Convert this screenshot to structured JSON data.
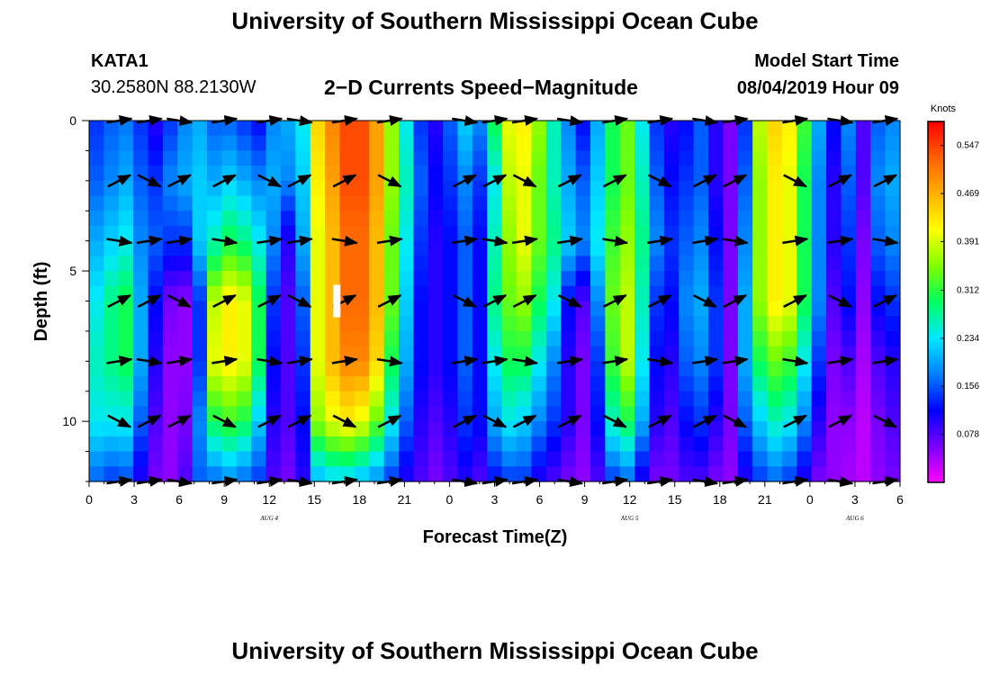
{
  "header": {
    "title": "University of Southern Mississippi Ocean Cube",
    "station": "KATA1",
    "coords": "30.2580N 88.2130W",
    "subtitle": "2−D Currents Speed−Magnitude",
    "model_start_label": "Model Start Time",
    "model_start_value": "08/04/2019 Hour 09"
  },
  "footer": {
    "title": "University of Southern Mississippi Ocean Cube"
  },
  "chart_data": {
    "type": "heatmap",
    "xlabel": "Forecast Time(Z)",
    "ylabel": "Depth (ft)",
    "xlim": [
      0,
      54
    ],
    "ylim": [
      12,
      0
    ],
    "x_tick_labels": [
      "0",
      "3",
      "6",
      "9",
      "12",
      "15",
      "18",
      "21",
      "0",
      "3",
      "6",
      "9",
      "12",
      "15",
      "18",
      "21",
      "0",
      "3",
      "6"
    ],
    "y_ticks": [
      0,
      5,
      10
    ],
    "day_labels": [
      {
        "label": "AUG 4",
        "x": 12
      },
      {
        "label": "AUG 5",
        "x": 36
      },
      {
        "label": "AUG 6",
        "x": 51
      }
    ],
    "colorbar": {
      "label": "Knots",
      "ticks": [
        0.078,
        0.156,
        0.234,
        0.312,
        0.391,
        0.469,
        0.547
      ],
      "range": [
        0,
        0.586
      ],
      "colors": [
        "#ff00ff",
        "#7a00ff",
        "#0000ff",
        "#0080ff",
        "#00e8ff",
        "#00ff60",
        "#80ff00",
        "#ffff00",
        "#ffb000",
        "#ff6000",
        "#ff0000"
      ]
    },
    "depths": [
      0,
      2,
      4,
      6,
      8,
      10,
      12
    ],
    "hours_step": 1,
    "column_speeds": [
      [
        0.14,
        0.16,
        0.2,
        0.24,
        0.26,
        0.24,
        0.16
      ],
      [
        0.16,
        0.18,
        0.22,
        0.28,
        0.28,
        0.24,
        0.14
      ],
      [
        0.17,
        0.2,
        0.24,
        0.3,
        0.3,
        0.24,
        0.15
      ],
      [
        0.14,
        0.16,
        0.18,
        0.2,
        0.2,
        0.16,
        0.1
      ],
      [
        0.1,
        0.14,
        0.16,
        0.12,
        0.1,
        0.08,
        0.06
      ],
      [
        0.14,
        0.18,
        0.14,
        0.06,
        0.05,
        0.05,
        0.05
      ],
      [
        0.18,
        0.2,
        0.14,
        0.05,
        0.05,
        0.06,
        0.08
      ],
      [
        0.2,
        0.22,
        0.22,
        0.14,
        0.14,
        0.18,
        0.16
      ],
      [
        0.16,
        0.2,
        0.26,
        0.38,
        0.4,
        0.3,
        0.16
      ],
      [
        0.16,
        0.22,
        0.3,
        0.42,
        0.42,
        0.32,
        0.18
      ],
      [
        0.14,
        0.2,
        0.28,
        0.4,
        0.4,
        0.3,
        0.16
      ],
      [
        0.12,
        0.18,
        0.24,
        0.3,
        0.3,
        0.22,
        0.14
      ],
      [
        0.18,
        0.2,
        0.18,
        0.14,
        0.12,
        0.1,
        0.08
      ],
      [
        0.2,
        0.18,
        0.1,
        0.08,
        0.08,
        0.08,
        0.06
      ],
      [
        0.24,
        0.22,
        0.2,
        0.16,
        0.14,
        0.12,
        0.1
      ],
      [
        0.44,
        0.42,
        0.4,
        0.4,
        0.4,
        0.36,
        0.2
      ],
      [
        0.5,
        0.48,
        0.46,
        0.46,
        0.46,
        0.4,
        0.22
      ],
      [
        0.54,
        0.54,
        0.52,
        0.52,
        0.5,
        0.42,
        0.22
      ],
      [
        0.54,
        0.54,
        0.52,
        0.52,
        0.5,
        0.4,
        0.2
      ],
      [
        0.48,
        0.48,
        0.46,
        0.46,
        0.44,
        0.34,
        0.18
      ],
      [
        0.36,
        0.36,
        0.34,
        0.34,
        0.3,
        0.24,
        0.14
      ],
      [
        0.24,
        0.26,
        0.24,
        0.22,
        0.2,
        0.16,
        0.1
      ],
      [
        0.14,
        0.16,
        0.14,
        0.12,
        0.12,
        0.1,
        0.08
      ],
      [
        0.1,
        0.12,
        0.1,
        0.1,
        0.1,
        0.08,
        0.06
      ],
      [
        0.16,
        0.14,
        0.12,
        0.12,
        0.12,
        0.1,
        0.08
      ],
      [
        0.22,
        0.18,
        0.16,
        0.16,
        0.16,
        0.14,
        0.1
      ],
      [
        0.18,
        0.14,
        0.12,
        0.12,
        0.12,
        0.12,
        0.08
      ],
      [
        0.3,
        0.24,
        0.26,
        0.28,
        0.24,
        0.2,
        0.12
      ],
      [
        0.4,
        0.38,
        0.36,
        0.34,
        0.3,
        0.24,
        0.14
      ],
      [
        0.42,
        0.4,
        0.4,
        0.36,
        0.3,
        0.22,
        0.14
      ],
      [
        0.36,
        0.34,
        0.34,
        0.3,
        0.24,
        0.18,
        0.1
      ],
      [
        0.26,
        0.26,
        0.28,
        0.24,
        0.18,
        0.14,
        0.08
      ],
      [
        0.18,
        0.2,
        0.22,
        0.12,
        0.1,
        0.1,
        0.06
      ],
      [
        0.12,
        0.16,
        0.18,
        0.08,
        0.06,
        0.06,
        0.05
      ],
      [
        0.2,
        0.22,
        0.24,
        0.18,
        0.14,
        0.12,
        0.08
      ],
      [
        0.3,
        0.3,
        0.32,
        0.34,
        0.32,
        0.26,
        0.14
      ],
      [
        0.34,
        0.34,
        0.36,
        0.38,
        0.38,
        0.3,
        0.16
      ],
      [
        0.24,
        0.26,
        0.28,
        0.26,
        0.24,
        0.2,
        0.1
      ],
      [
        0.14,
        0.16,
        0.18,
        0.14,
        0.12,
        0.1,
        0.06
      ],
      [
        0.1,
        0.12,
        0.14,
        0.12,
        0.1,
        0.08,
        0.06
      ],
      [
        0.12,
        0.14,
        0.16,
        0.18,
        0.16,
        0.12,
        0.08
      ],
      [
        0.16,
        0.16,
        0.18,
        0.2,
        0.18,
        0.14,
        0.08
      ],
      [
        0.1,
        0.1,
        0.12,
        0.14,
        0.14,
        0.1,
        0.06
      ],
      [
        0.06,
        0.06,
        0.06,
        0.06,
        0.06,
        0.06,
        0.05
      ],
      [
        0.14,
        0.16,
        0.18,
        0.2,
        0.2,
        0.16,
        0.1
      ],
      [
        0.38,
        0.36,
        0.36,
        0.36,
        0.3,
        0.22,
        0.14
      ],
      [
        0.44,
        0.42,
        0.42,
        0.42,
        0.34,
        0.26,
        0.16
      ],
      [
        0.42,
        0.4,
        0.4,
        0.4,
        0.32,
        0.24,
        0.14
      ],
      [
        0.32,
        0.3,
        0.3,
        0.3,
        0.24,
        0.18,
        0.1
      ],
      [
        0.2,
        0.18,
        0.18,
        0.18,
        0.14,
        0.1,
        0.06
      ],
      [
        0.12,
        0.1,
        0.1,
        0.08,
        0.06,
        0.05,
        0.05
      ],
      [
        0.18,
        0.16,
        0.14,
        0.12,
        0.08,
        0.05,
        0.04
      ],
      [
        0.08,
        0.08,
        0.06,
        0.05,
        0.04,
        0.03,
        0.03
      ],
      [
        0.16,
        0.18,
        0.16,
        0.12,
        0.08,
        0.06,
        0.05
      ],
      [
        0.18,
        0.2,
        0.18,
        0.14,
        0.1,
        0.08,
        0.06
      ]
    ],
    "vector_hours": [
      0,
      2,
      4,
      6,
      9,
      12,
      14,
      17,
      20,
      25,
      27,
      29,
      32,
      35,
      38,
      41,
      43,
      47,
      50,
      53
    ],
    "vector_depths": [
      0,
      2,
      4,
      6,
      8,
      10,
      12
    ],
    "vector_angle_deg": 15,
    "marker": {
      "hour": 16.5,
      "depth": 6
    }
  }
}
